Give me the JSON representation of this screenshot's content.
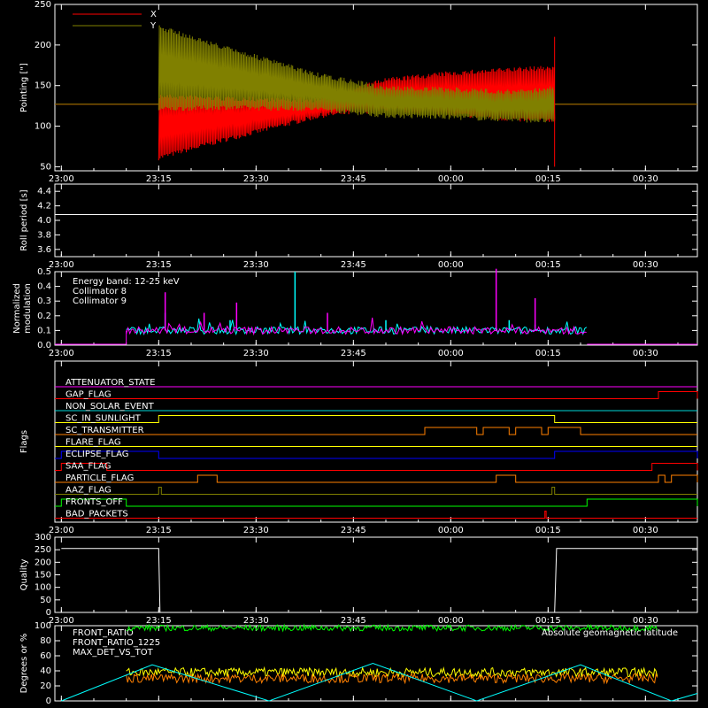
{
  "time_ticks": [
    "23:00",
    "23:15",
    "23:30",
    "23:45",
    "00:00",
    "00:15",
    "00:30"
  ],
  "chart_data": [
    {
      "type": "line",
      "ylabel": "Pointing [\"]",
      "ylim": [
        45,
        250
      ],
      "yticks": [
        "50",
        "100",
        "150",
        "200",
        "250"
      ],
      "legend_placement": "top-left",
      "series": [
        {
          "name": "X",
          "color": "#ff0000",
          "baseline_before": 127,
          "baseline_after": 127,
          "envelope": {
            "t": [
              "23:15",
              "23:25",
              "23:40",
              "23:50",
              "00:00",
              "00:10",
              "00:16"
            ],
            "low": [
              58,
              80,
              110,
              118,
              112,
              105,
              105
            ],
            "high": [
              140,
              137,
              135,
              160,
              168,
              173,
              175
            ]
          }
        },
        {
          "name": "Y",
          "color": "#808000",
          "baseline_before": 127,
          "baseline_after": 127,
          "envelope": {
            "t": [
              "23:15",
              "23:25",
              "23:40",
              "23:50",
              "00:00",
              "00:10",
              "00:16"
            ],
            "low": [
              118,
              120,
              118,
              110,
              108,
              105,
              103
            ],
            "high": [
              225,
              200,
              165,
              150,
              148,
              145,
              150
            ]
          }
        }
      ]
    },
    {
      "type": "line",
      "ylabel": "Roll period [s]",
      "ylim": [
        3.5,
        4.5
      ],
      "yticks": [
        "3.6",
        "3.8",
        "4.0",
        "4.2",
        "4.4"
      ],
      "series": [
        {
          "color": "#ffffff",
          "value": 4.08
        }
      ]
    },
    {
      "type": "line",
      "ylabel": "Normalized modulation",
      "ylabel_lines": [
        "Normalized",
        "modulation"
      ],
      "ylim": [
        0,
        0.5
      ],
      "yticks": [
        "0.0",
        "0.1",
        "0.2",
        "0.3",
        "0.4",
        "0.5"
      ],
      "annotation": "Energy band: 12-25 keV",
      "active_range": [
        "23:10",
        "00:21"
      ],
      "series": [
        {
          "name": "Collimator 8",
          "color": "#00ffff",
          "level": 0.1,
          "spikes": [
            [
              "23:16",
              0.22
            ],
            [
              "23:26",
              0.17
            ],
            [
              "23:36",
              0.5
            ],
            [
              "23:50",
              0.17
            ],
            [
              "00:09",
              0.17
            ],
            [
              "00:13",
              0.14
            ]
          ]
        },
        {
          "name": "Collimator 9",
          "color": "#ff00ff",
          "level": 0.1,
          "spikes": [
            [
              "23:16",
              0.36
            ],
            [
              "23:22",
              0.22
            ],
            [
              "23:27",
              0.29
            ],
            [
              "23:41",
              0.22
            ],
            [
              "00:07",
              0.52
            ],
            [
              "00:13",
              0.32
            ]
          ]
        }
      ]
    },
    {
      "type": "line",
      "ylabel": "Flags",
      "flags": [
        {
          "name": "ATTENUATOR_STATE",
          "color": "#ff00ff",
          "high": []
        },
        {
          "name": "GAP_FLAG",
          "color": "#ff0000",
          "high": [
            [
              "00:32",
              "00:38"
            ]
          ]
        },
        {
          "name": "NON_SOLAR_EVENT",
          "color": "#00d8d8",
          "high": []
        },
        {
          "name": "SC_IN_SUNLIGHT",
          "color": "#ffff00",
          "high": [
            [
              "23:15",
              "00:16"
            ]
          ]
        },
        {
          "name": "SC_TRANSMITTER",
          "color": "#ff8000",
          "high": [
            [
              "23:56",
              "00:04"
            ],
            [
              "00:05",
              "00:09"
            ],
            [
              "00:10",
              "00:14"
            ],
            [
              "00:15",
              "00:20"
            ]
          ]
        },
        {
          "name": "FLARE_FLAG",
          "color": "#ffff00",
          "high": []
        },
        {
          "name": "ECLIPSE_FLAG",
          "color": "#0000ff",
          "high": [
            [
              "23:00",
              "23:15"
            ],
            [
              "00:16",
              "00:38"
            ]
          ]
        },
        {
          "name": "SAA_FLAG",
          "color": "#ff0000",
          "high": [
            [
              "23:00",
              "23:07"
            ],
            [
              "00:31",
              "00:38"
            ]
          ]
        },
        {
          "name": "PARTICLE_FLAG",
          "color": "#ff8000",
          "high": [
            [
              "23:21",
              "23:24"
            ],
            [
              "00:07",
              "00:10"
            ],
            [
              "00:32",
              "00:33"
            ],
            [
              "00:34",
              "00:38"
            ]
          ]
        },
        {
          "name": "AAZ_FLAG",
          "color": "#808000",
          "high": [
            [
              "23:15",
              "23:15.4"
            ],
            [
              "00:15.6",
              "00:16"
            ]
          ]
        },
        {
          "name": "FRONTS_OFF",
          "color": "#00ff00",
          "high": [
            [
              "23:00",
              "23:10"
            ],
            [
              "00:21",
              "00:38"
            ]
          ]
        },
        {
          "name": "BAD_PACKETS",
          "color": "#ff0000",
          "high": [
            [
              "00:14.5",
              "00:14.7"
            ]
          ]
        }
      ]
    },
    {
      "type": "line",
      "ylabel": "Quality",
      "ylim": [
        0,
        300
      ],
      "yticks": [
        "0",
        "50",
        "100",
        "150",
        "200",
        "250",
        "300"
      ],
      "series": [
        {
          "color": "#ffffff",
          "points": [
            [
              "23:00",
              255
            ],
            [
              "23:15",
              255
            ],
            [
              "23:15.2",
              0
            ],
            [
              "00:16",
              0
            ],
            [
              "00:16.3",
              255
            ],
            [
              "00:38",
              255
            ]
          ]
        }
      ]
    },
    {
      "type": "line",
      "ylabel": "Degrees or %",
      "ylim": [
        0,
        100
      ],
      "yticks": [
        "0",
        "20",
        "40",
        "60",
        "80",
        "100"
      ],
      "series": [
        {
          "name": "FRONT_RATIO",
          "color": "#ffff00",
          "level": 38
        },
        {
          "name": "FRONT_RATIO_1225",
          "color": "#00ff00",
          "level": 97
        },
        {
          "name": "MAX_DET_VS_TOT",
          "color": "#ff8000",
          "level": 30
        },
        {
          "name": "Absolute geomagnetic latitude",
          "color": "#00ffff",
          "points": [
            [
              "23:00",
              0
            ],
            [
              "23:14",
              48
            ],
            [
              "23:32",
              0
            ],
            [
              "23:48",
              50
            ],
            [
              "00:04",
              0
            ],
            [
              "00:20",
              48
            ],
            [
              "00:34",
              0
            ],
            [
              "00:38",
              10
            ]
          ]
        }
      ]
    }
  ]
}
